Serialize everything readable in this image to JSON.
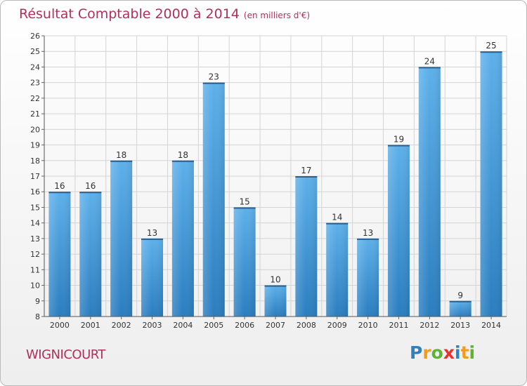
{
  "title": "Résultat Comptable 2000 à 2014",
  "subtitle": "(en milliers d'€)",
  "location": "WIGNICOURT",
  "logo": {
    "letters": [
      "P",
      "r",
      "o",
      "x",
      "i",
      "t",
      "i"
    ],
    "colors": [
      "#2f7fc1",
      "#f29c1f",
      "#5cb531",
      "#e8322f",
      "#2f7fc1",
      "#f29c1f",
      "#5cb531"
    ]
  },
  "colors": {
    "bar_top": "#5eb0ea",
    "bar_bottom": "#2a7dbf",
    "title": "#b0305a",
    "grid": "#d4d4d4"
  },
  "chart_data": {
    "type": "bar",
    "title": "Résultat Comptable 2000 à 2014",
    "subtitle": "(en milliers d'€)",
    "xlabel": "",
    "ylabel": "",
    "categories": [
      "2000",
      "2001",
      "2002",
      "2003",
      "2004",
      "2005",
      "2006",
      "2007",
      "2008",
      "2009",
      "2010",
      "2011",
      "2012",
      "2013",
      "2014"
    ],
    "values": [
      16,
      16,
      18,
      13,
      18,
      23,
      15,
      10,
      17,
      14,
      13,
      19,
      24,
      9,
      25
    ],
    "ylim": [
      8,
      26
    ],
    "yticks": [
      "8",
      "9",
      "10",
      "11",
      "12",
      "13",
      "14",
      "15",
      "16",
      "17",
      "18",
      "19",
      "20",
      "21",
      "22",
      "23",
      "24",
      "25",
      "26"
    ],
    "grid": true
  }
}
